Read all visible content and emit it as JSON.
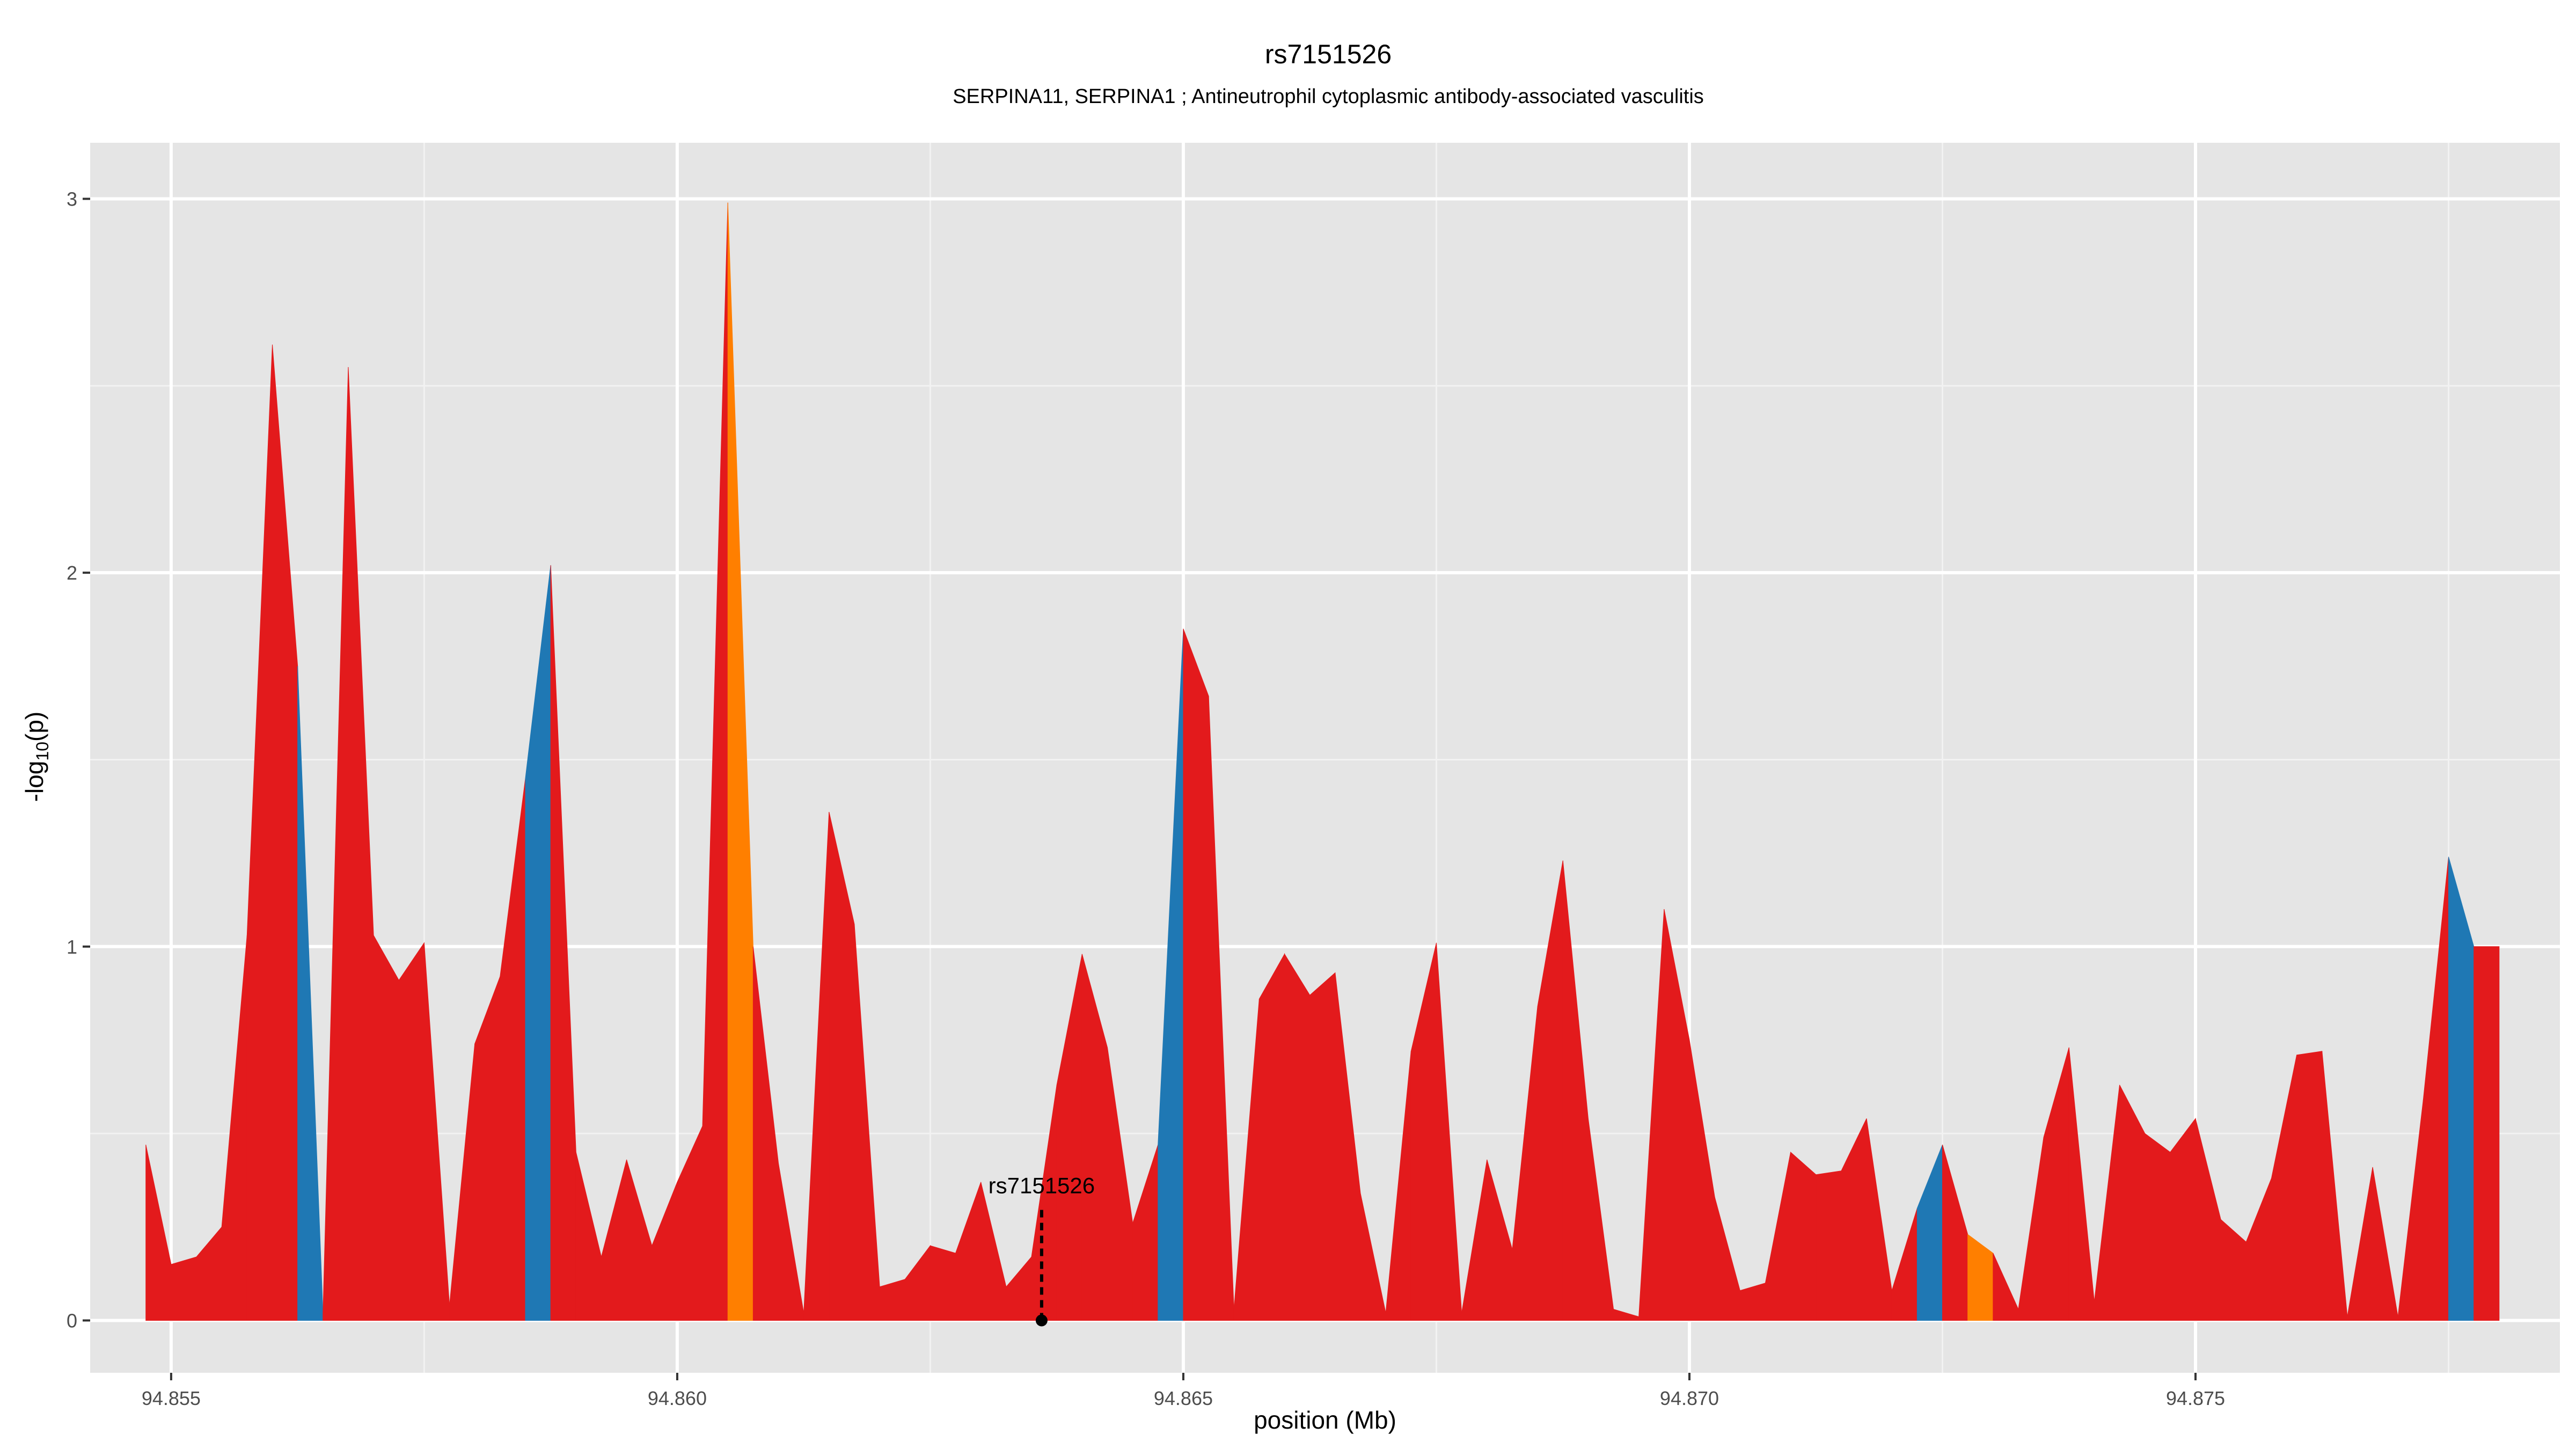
{
  "chart_data": {
    "type": "area",
    "title": "rs7151526",
    "subtitle": "SERPINA11, SERPINA1 ; Antineutrophil cytoplasmic antibody-associated vasculitis",
    "xlabel": "position (Mb)",
    "ylabel_main": "-log",
    "ylabel_sub": "10",
    "ylabel_end": "(p)",
    "xlim": [
      94.8542,
      94.8786
    ],
    "ylim": [
      -0.14,
      3.15
    ],
    "xticks": [
      94.855,
      94.86,
      94.865,
      94.87,
      94.875
    ],
    "xtick_labels": [
      "94.855",
      "94.860",
      "94.865",
      "94.870",
      "94.875"
    ],
    "yticks": [
      0,
      1,
      2,
      3
    ],
    "ytick_labels": [
      "0",
      "1",
      "2",
      "3"
    ],
    "grid": true,
    "colors": {
      "panel": "#e5e5e5",
      "grid_major": "#ffffff",
      "grid_minor": "#f2f2f2",
      "red": "#e31a1c",
      "blue": "#1f78b4",
      "orange": "#ff7f00"
    },
    "annotation": {
      "label": "rs7151526",
      "x": 94.8636,
      "y": 0
    },
    "x": [
      94.85475,
      94.855,
      94.85525,
      94.8555,
      94.85575,
      94.856,
      94.85625,
      94.8565,
      94.85675,
      94.857,
      94.85725,
      94.8575,
      94.85775,
      94.858,
      94.85825,
      94.8585,
      94.85875,
      94.859,
      94.85925,
      94.8595,
      94.85975,
      94.86,
      94.86025,
      94.8605,
      94.86075,
      94.861,
      94.86125,
      94.8615,
      94.86175,
      94.862,
      94.86225,
      94.8625,
      94.86275,
      94.863,
      94.86325,
      94.8635,
      94.86375,
      94.864,
      94.86425,
      94.8645,
      94.86475,
      94.865,
      94.86525,
      94.8655,
      94.86575,
      94.866,
      94.86625,
      94.8665,
      94.86675,
      94.867,
      94.86725,
      94.8675,
      94.86775,
      94.868,
      94.86825,
      94.8685,
      94.86875,
      94.869,
      94.86925,
      94.8695,
      94.86975,
      94.87,
      94.87025,
      94.8705,
      94.87075,
      94.871,
      94.87125,
      94.8715,
      94.87175,
      94.872,
      94.87225,
      94.8725,
      94.87275,
      94.873,
      94.87325,
      94.8735,
      94.87375,
      94.874,
      94.87425,
      94.8745,
      94.87475,
      94.875,
      94.87525,
      94.8755,
      94.87575,
      94.876,
      94.87625,
      94.8765,
      94.87675,
      94.877,
      94.87725,
      94.8775,
      94.87775,
      94.878
    ],
    "y": [
      0.47,
      0.15,
      0.17,
      0.25,
      1.03,
      2.61,
      1.75,
      0.02,
      2.55,
      1.03,
      0.91,
      1.01,
      0.04,
      0.74,
      0.92,
      1.45,
      2.02,
      0.45,
      0.17,
      0.43,
      0.2,
      0.37,
      0.52,
      2.99,
      1.0,
      0.42,
      0.02,
      1.36,
      1.06,
      0.09,
      0.11,
      0.2,
      0.18,
      0.37,
      0.09,
      0.17,
      0.63,
      0.98,
      0.73,
      0.26,
      0.47,
      1.85,
      1.67,
      0.03,
      0.86,
      0.98,
      0.87,
      0.93,
      0.34,
      0.02,
      0.72,
      1.01,
      0.02,
      0.43,
      0.19,
      0.84,
      1.23,
      0.54,
      0.03,
      0.01,
      1.1,
      0.75,
      0.33,
      0.08,
      0.1,
      0.45,
      0.39,
      0.4,
      0.54,
      0.08,
      0.3,
      0.47,
      0.23,
      0.18,
      0.03,
      0.49,
      0.73,
      0.05,
      0.63,
      0.5,
      0.45,
      0.54,
      0.27,
      0.21,
      0.38,
      0.71,
      0.72,
      0.01,
      0.41,
      0.01,
      0.59,
      1.24,
      1.0,
      1.0
    ],
    "segment_colors": [
      "red",
      "red",
      "red",
      "red",
      "red",
      "red",
      "blue",
      "red",
      "red",
      "red",
      "red",
      "red",
      "red",
      "red",
      "red",
      "blue",
      "red",
      "red",
      "red",
      "red",
      "red",
      "red",
      "red",
      "orange",
      "red",
      "red",
      "red",
      "red",
      "red",
      "red",
      "red",
      "red",
      "red",
      "red",
      "red",
      "red",
      "red",
      "red",
      "red",
      "red",
      "blue",
      "red",
      "red",
      "red",
      "red",
      "red",
      "red",
      "red",
      "red",
      "red",
      "red",
      "red",
      "red",
      "red",
      "red",
      "red",
      "red",
      "red",
      "red",
      "red",
      "red",
      "red",
      "red",
      "red",
      "red",
      "red",
      "red",
      "red",
      "red",
      "red",
      "blue",
      "red",
      "orange",
      "red",
      "red",
      "red",
      "red",
      "red",
      "red",
      "red",
      "red",
      "red",
      "red",
      "red",
      "red",
      "red",
      "red",
      "red",
      "red",
      "red",
      "red",
      "blue"
    ]
  }
}
